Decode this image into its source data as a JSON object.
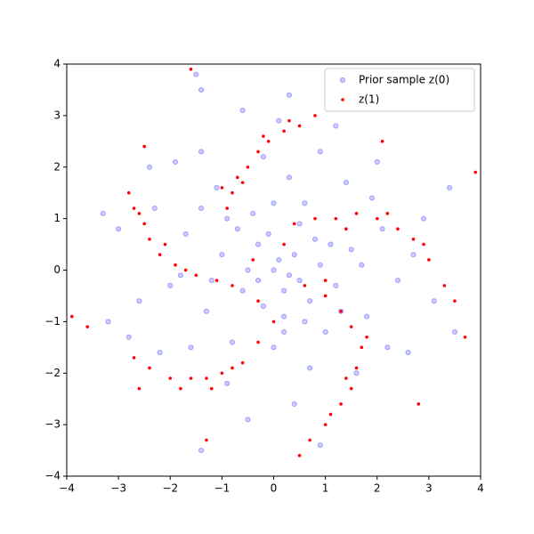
{
  "chart_data": {
    "type": "scatter",
    "xlim": [
      -4,
      4
    ],
    "ylim": [
      -4,
      4
    ],
    "xticks": [
      {
        "value": -4,
        "label": "−4"
      },
      {
        "value": -3,
        "label": "−3"
      },
      {
        "value": -2,
        "label": "−2"
      },
      {
        "value": -1,
        "label": "−1"
      },
      0,
      1,
      2,
      3,
      4
    ],
    "yticks": [
      {
        "value": -4,
        "label": "−4"
      },
      {
        "value": -3,
        "label": "−3"
      },
      {
        "value": -2,
        "label": "−2"
      },
      {
        "value": -1,
        "label": "−1"
      },
      0,
      1,
      2,
      3,
      4
    ],
    "legend": "upper right",
    "series": [
      {
        "name": "Prior sample z(0)",
        "color": "#0000ff",
        "x": [
          0.1,
          -0.3,
          0.5,
          -0.6,
          0.8,
          -1.0,
          0.2,
          1.2,
          -0.4,
          0.6,
          -1.3,
          1.5,
          0.0,
          -1.7,
          1.0,
          -0.8,
          0.3,
          -1.1,
          1.8,
          -2.0,
          2.1,
          0.7,
          -0.2,
          -1.6,
          1.4,
          2.4,
          -2.3,
          0.9,
          -0.9,
          1.9,
          -2.6,
          0.4,
          -1.4,
          2.7,
          1.6,
          -2.2,
          0.1,
          -0.5,
          2.9,
          -3.0,
          3.1,
          -1.9,
          1.2,
          -2.8,
          2.2,
          3.4,
          -3.3,
          -1.5,
          -1.4,
          0.3,
          -1.4,
          0.9,
          3.5,
          -3.2,
          0.0,
          0.2,
          -0.1,
          0.4,
          -0.5,
          0.7,
          -0.2,
          0.9,
          -0.7,
          0.3,
          -0.3,
          0.5,
          1.1,
          -1.2,
          0.6,
          -0.9,
          1.3,
          -1.4,
          0.0,
          0.2,
          1.7,
          -1.8,
          2.6,
          -2.4,
          2.0,
          -0.6
        ],
        "values": [
          0.2,
          0.5,
          -0.2,
          -0.4,
          0.6,
          0.3,
          -0.9,
          -0.3,
          1.1,
          1.3,
          -0.8,
          0.4,
          -1.5,
          0.7,
          -1.2,
          -1.4,
          1.8,
          1.6,
          -0.9,
          -0.3,
          0.8,
          -1.9,
          2.2,
          -1.5,
          1.7,
          -0.2,
          1.2,
          2.3,
          -2.2,
          1.4,
          -0.6,
          -2.6,
          2.3,
          0.3,
          -2.0,
          -1.6,
          2.9,
          -2.9,
          1.0,
          0.8,
          -0.6,
          2.1,
          2.8,
          -1.3,
          -1.5,
          1.6,
          1.1,
          3.8,
          3.5,
          3.4,
          -3.5,
          -3.4,
          -1.2,
          -1.0,
          0.0,
          -0.4,
          0.7,
          0.3,
          0.0,
          -0.6,
          -0.7,
          0.1,
          0.8,
          -0.1,
          -0.2,
          0.9,
          0.5,
          -0.2,
          -1.0,
          1.0,
          -0.8,
          1.2,
          1.3,
          -1.2,
          0.1,
          -0.1,
          -1.6,
          2.0,
          2.1,
          3.1
        ]
      },
      {
        "name": "z(1)",
        "color": "#ff0000",
        "x": [
          -0.9,
          -0.8,
          -0.7,
          -0.5,
          -0.3,
          -0.1,
          0.2,
          0.5,
          -1.0,
          -0.6,
          -0.2,
          0.3,
          0.8,
          0.4,
          0.8,
          1.2,
          1.6,
          2.0,
          2.4,
          2.7,
          3.0,
          3.3,
          3.5,
          1.4,
          2.2,
          2.9,
          3.9,
          3.7,
          1.0,
          1.3,
          1.5,
          1.7,
          1.6,
          1.5,
          1.3,
          1.0,
          0.7,
          0.5,
          1.8,
          1.4,
          1.1,
          0.0,
          -0.3,
          -0.6,
          -1.0,
          -1.3,
          -1.6,
          -2.0,
          -2.4,
          -2.7,
          -0.8,
          -1.2,
          -1.8,
          -2.6,
          -1.3,
          -0.8,
          -1.1,
          -1.5,
          -1.9,
          -2.2,
          -2.4,
          -2.5,
          -2.7,
          -2.8,
          -1.7,
          -2.1,
          -2.6,
          -3.9,
          -3.6,
          -1.6,
          0.2,
          -0.4,
          0.6,
          1.0,
          -0.3,
          2.1,
          -2.5,
          2.8
        ],
        "values": [
          1.2,
          1.5,
          1.8,
          2.0,
          2.3,
          2.5,
          2.7,
          2.8,
          1.6,
          1.7,
          2.6,
          2.9,
          3.0,
          0.9,
          1.0,
          1.0,
          1.1,
          1.0,
          0.8,
          0.6,
          0.2,
          -0.3,
          -0.6,
          0.8,
          1.1,
          0.5,
          1.9,
          -1.3,
          -0.5,
          -0.8,
          -1.1,
          -1.5,
          -1.9,
          -2.3,
          -2.6,
          -3.0,
          -3.3,
          -3.6,
          -1.3,
          -2.1,
          -2.8,
          -1.0,
          -1.4,
          -1.8,
          -2.0,
          -2.1,
          -2.1,
          -2.1,
          -1.9,
          -1.7,
          -1.9,
          -2.3,
          -2.3,
          -2.3,
          -3.3,
          -0.3,
          -0.2,
          -0.1,
          0.1,
          0.3,
          0.6,
          0.9,
          1.2,
          1.5,
          0.0,
          0.5,
          1.1,
          -0.9,
          -1.1,
          3.9,
          0.5,
          0.2,
          -0.3,
          -0.2,
          -0.6,
          2.5,
          2.4,
          -2.6
        ]
      }
    ]
  }
}
